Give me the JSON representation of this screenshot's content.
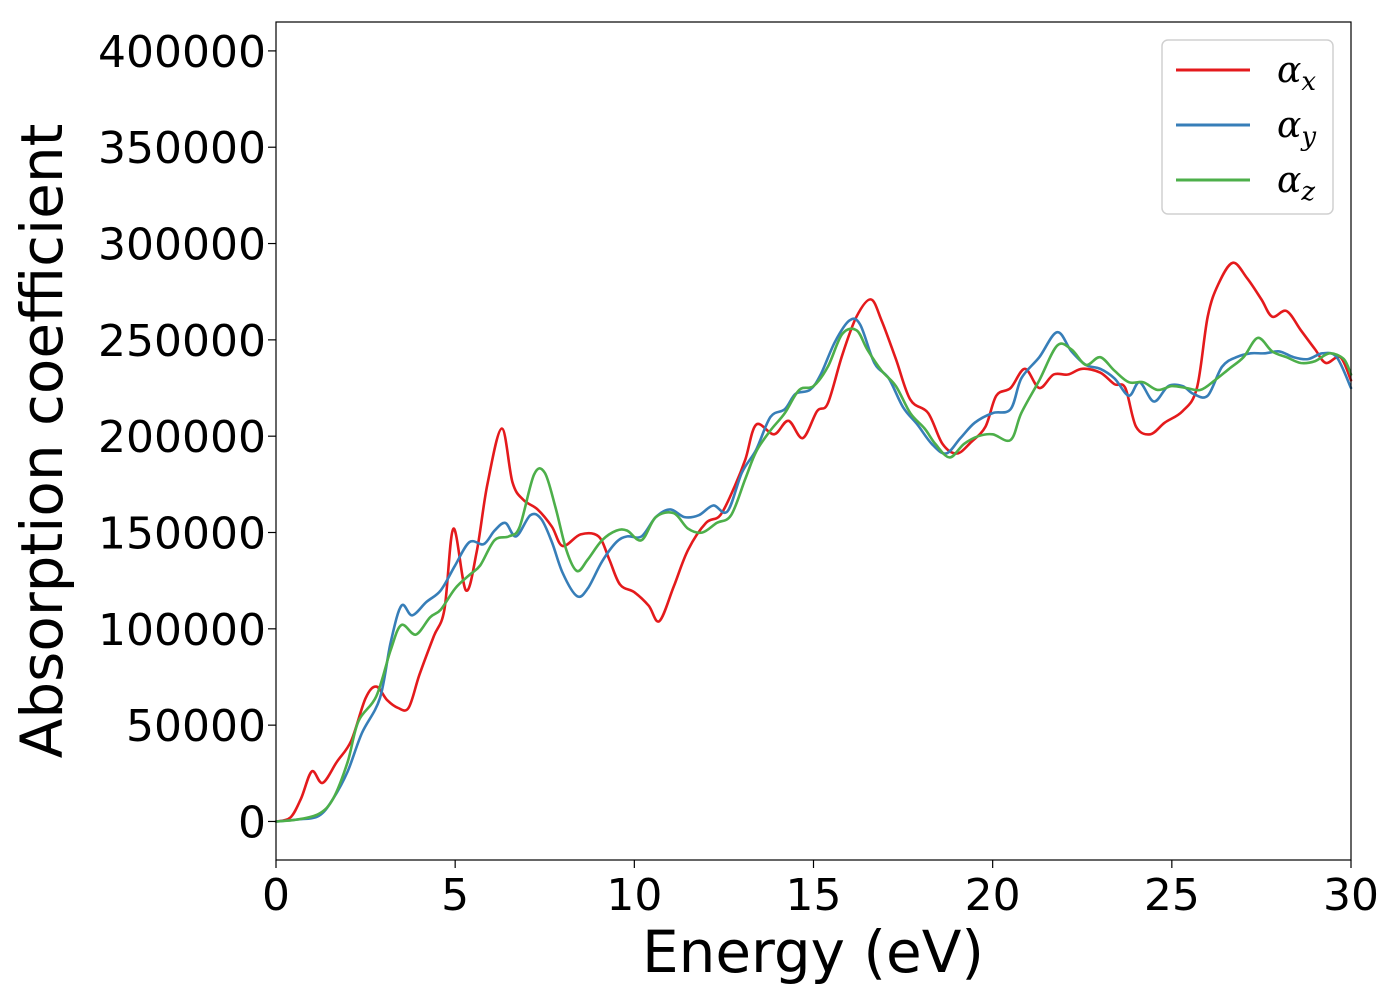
{
  "chart_data": {
    "type": "line",
    "xlabel": "Energy (eV)",
    "ylabel": "Absorption coefficient",
    "xlim": [
      0,
      30
    ],
    "ylim": [
      -20000,
      415000
    ],
    "xticks": [
      0,
      5,
      10,
      15,
      20,
      25,
      30
    ],
    "xtick_labels": [
      "0",
      "5",
      "10",
      "15",
      "20",
      "25",
      "30"
    ],
    "yticks": [
      0,
      50000,
      100000,
      150000,
      200000,
      250000,
      300000,
      350000,
      400000
    ],
    "ytick_labels": [
      "0",
      "50000",
      "100000",
      "150000",
      "200000",
      "250000",
      "300000",
      "350000",
      "400000"
    ],
    "grid": false,
    "legend": "top-right",
    "series": [
      {
        "name": "α",
        "subscript": "x",
        "color": "#e41a1c",
        "points": [
          [
            0,
            0
          ],
          [
            0.4,
            2000
          ],
          [
            0.7,
            12000
          ],
          [
            1.0,
            26000
          ],
          [
            1.3,
            20000
          ],
          [
            1.7,
            31000
          ],
          [
            2.1,
            42000
          ],
          [
            2.5,
            64000
          ],
          [
            2.8,
            70000
          ],
          [
            3.1,
            63000
          ],
          [
            3.4,
            59000
          ],
          [
            3.7,
            59000
          ],
          [
            4.0,
            76000
          ],
          [
            4.4,
            96000
          ],
          [
            4.7,
            110000
          ],
          [
            4.95,
            152000
          ],
          [
            5.3,
            120000
          ],
          [
            5.6,
            140000
          ],
          [
            5.9,
            175000
          ],
          [
            6.3,
            204000
          ],
          [
            6.6,
            176000
          ],
          [
            6.9,
            167000
          ],
          [
            7.3,
            162000
          ],
          [
            7.7,
            153000
          ],
          [
            8.0,
            143000
          ],
          [
            8.5,
            149000
          ],
          [
            9.0,
            148000
          ],
          [
            9.3,
            136000
          ],
          [
            9.6,
            123000
          ],
          [
            10.0,
            119000
          ],
          [
            10.4,
            112000
          ],
          [
            10.7,
            104000
          ],
          [
            11.1,
            122000
          ],
          [
            11.5,
            141000
          ],
          [
            12.0,
            155000
          ],
          [
            12.4,
            159000
          ],
          [
            12.8,
            174000
          ],
          [
            13.1,
            188000
          ],
          [
            13.4,
            206000
          ],
          [
            13.9,
            201000
          ],
          [
            14.3,
            208000
          ],
          [
            14.7,
            199000
          ],
          [
            15.1,
            213000
          ],
          [
            15.4,
            217000
          ],
          [
            15.8,
            242000
          ],
          [
            16.2,
            262000
          ],
          [
            16.6,
            271000
          ],
          [
            16.9,
            260000
          ],
          [
            17.3,
            240000
          ],
          [
            17.7,
            219000
          ],
          [
            18.2,
            212000
          ],
          [
            18.6,
            196000
          ],
          [
            19.0,
            191000
          ],
          [
            19.4,
            197000
          ],
          [
            19.8,
            205000
          ],
          [
            20.1,
            221000
          ],
          [
            20.5,
            225000
          ],
          [
            20.9,
            235000
          ],
          [
            21.3,
            225000
          ],
          [
            21.7,
            232000
          ],
          [
            22.1,
            232000
          ],
          [
            22.5,
            235000
          ],
          [
            23.0,
            233000
          ],
          [
            23.4,
            227000
          ],
          [
            23.7,
            225000
          ],
          [
            24.0,
            205000
          ],
          [
            24.4,
            201000
          ],
          [
            24.8,
            207000
          ],
          [
            25.3,
            213000
          ],
          [
            25.7,
            225000
          ],
          [
            26.0,
            262000
          ],
          [
            26.3,
            279000
          ],
          [
            26.7,
            290000
          ],
          [
            27.1,
            282000
          ],
          [
            27.5,
            271000
          ],
          [
            27.8,
            262000
          ],
          [
            28.2,
            265000
          ],
          [
            28.6,
            255000
          ],
          [
            29.0,
            245000
          ],
          [
            29.3,
            238000
          ],
          [
            29.7,
            241000
          ],
          [
            30.0,
            229000
          ]
        ]
      },
      {
        "name": "α",
        "subscript": "y",
        "color": "#377eb8",
        "points": [
          [
            0,
            0
          ],
          [
            0.6,
            1000
          ],
          [
            1.2,
            3000
          ],
          [
            1.6,
            12000
          ],
          [
            2.0,
            26000
          ],
          [
            2.4,
            46000
          ],
          [
            2.9,
            64000
          ],
          [
            3.2,
            93000
          ],
          [
            3.5,
            112000
          ],
          [
            3.8,
            107000
          ],
          [
            4.2,
            114000
          ],
          [
            4.6,
            120000
          ],
          [
            5.0,
            133000
          ],
          [
            5.4,
            145000
          ],
          [
            5.8,
            144000
          ],
          [
            6.1,
            151000
          ],
          [
            6.4,
            155000
          ],
          [
            6.7,
            148000
          ],
          [
            7.1,
            159000
          ],
          [
            7.4,
            157000
          ],
          [
            7.7,
            145000
          ],
          [
            8.0,
            129000
          ],
          [
            8.4,
            117000
          ],
          [
            8.7,
            121000
          ],
          [
            9.1,
            135000
          ],
          [
            9.5,
            145000
          ],
          [
            9.8,
            148000
          ],
          [
            10.2,
            148000
          ],
          [
            10.6,
            158000
          ],
          [
            11.0,
            162000
          ],
          [
            11.4,
            158000
          ],
          [
            11.8,
            159000
          ],
          [
            12.2,
            164000
          ],
          [
            12.6,
            161000
          ],
          [
            13.0,
            181000
          ],
          [
            13.4,
            193000
          ],
          [
            13.8,
            210000
          ],
          [
            14.2,
            214000
          ],
          [
            14.5,
            222000
          ],
          [
            14.9,
            224000
          ],
          [
            15.2,
            232000
          ],
          [
            15.6,
            249000
          ],
          [
            16.0,
            260000
          ],
          [
            16.3,
            258000
          ],
          [
            16.7,
            238000
          ],
          [
            17.1,
            230000
          ],
          [
            17.5,
            215000
          ],
          [
            17.9,
            206000
          ],
          [
            18.3,
            196000
          ],
          [
            18.7,
            191000
          ],
          [
            19.1,
            199000
          ],
          [
            19.5,
            207000
          ],
          [
            20.0,
            212000
          ],
          [
            20.5,
            214000
          ],
          [
            20.8,
            230000
          ],
          [
            21.3,
            241000
          ],
          [
            21.8,
            254000
          ],
          [
            22.2,
            244000
          ],
          [
            22.6,
            237000
          ],
          [
            23.0,
            235000
          ],
          [
            23.4,
            230000
          ],
          [
            23.8,
            221000
          ],
          [
            24.1,
            228000
          ],
          [
            24.5,
            218000
          ],
          [
            24.9,
            226000
          ],
          [
            25.3,
            226000
          ],
          [
            25.6,
            222000
          ],
          [
            26.0,
            221000
          ],
          [
            26.4,
            236000
          ],
          [
            26.8,
            241000
          ],
          [
            27.2,
            243000
          ],
          [
            27.6,
            243000
          ],
          [
            28.0,
            244000
          ],
          [
            28.4,
            241000
          ],
          [
            28.8,
            240000
          ],
          [
            29.2,
            243000
          ],
          [
            29.6,
            241000
          ],
          [
            30.0,
            225000
          ]
        ]
      },
      {
        "name": "α",
        "subscript": "z",
        "color": "#4daf4a",
        "points": [
          [
            0,
            0
          ],
          [
            0.6,
            1000
          ],
          [
            1.2,
            4000
          ],
          [
            1.6,
            12000
          ],
          [
            2.0,
            31000
          ],
          [
            2.3,
            52000
          ],
          [
            2.8,
            65000
          ],
          [
            3.2,
            89000
          ],
          [
            3.5,
            102000
          ],
          [
            3.9,
            97000
          ],
          [
            4.3,
            106000
          ],
          [
            4.6,
            110000
          ],
          [
            5.0,
            121000
          ],
          [
            5.4,
            128000
          ],
          [
            5.7,
            133000
          ],
          [
            6.1,
            146000
          ],
          [
            6.5,
            148000
          ],
          [
            6.8,
            153000
          ],
          [
            7.2,
            180000
          ],
          [
            7.5,
            181000
          ],
          [
            7.8,
            163000
          ],
          [
            8.1,
            141000
          ],
          [
            8.4,
            130000
          ],
          [
            8.7,
            136000
          ],
          [
            9.1,
            146000
          ],
          [
            9.5,
            151000
          ],
          [
            9.8,
            151000
          ],
          [
            10.2,
            146000
          ],
          [
            10.6,
            158000
          ],
          [
            11.1,
            160000
          ],
          [
            11.5,
            152000
          ],
          [
            11.9,
            150000
          ],
          [
            12.3,
            155000
          ],
          [
            12.7,
            159000
          ],
          [
            13.1,
            178000
          ],
          [
            13.4,
            192000
          ],
          [
            13.8,
            203000
          ],
          [
            14.2,
            212000
          ],
          [
            14.6,
            224000
          ],
          [
            15.0,
            226000
          ],
          [
            15.4,
            236000
          ],
          [
            15.8,
            253000
          ],
          [
            16.2,
            255000
          ],
          [
            16.5,
            245000
          ],
          [
            16.9,
            234000
          ],
          [
            17.3,
            226000
          ],
          [
            17.7,
            212000
          ],
          [
            18.1,
            204000
          ],
          [
            18.4,
            196000
          ],
          [
            18.8,
            189000
          ],
          [
            19.2,
            196000
          ],
          [
            19.6,
            200000
          ],
          [
            20.0,
            201000
          ],
          [
            20.5,
            198000
          ],
          [
            20.8,
            212000
          ],
          [
            21.3,
            229000
          ],
          [
            21.8,
            247000
          ],
          [
            22.2,
            245000
          ],
          [
            22.6,
            237000
          ],
          [
            23.0,
            241000
          ],
          [
            23.4,
            234000
          ],
          [
            23.8,
            228000
          ],
          [
            24.2,
            228000
          ],
          [
            24.6,
            224000
          ],
          [
            25.0,
            226000
          ],
          [
            25.4,
            225000
          ],
          [
            25.8,
            224000
          ],
          [
            26.2,
            229000
          ],
          [
            26.6,
            235000
          ],
          [
            27.0,
            241000
          ],
          [
            27.4,
            251000
          ],
          [
            27.8,
            244000
          ],
          [
            28.2,
            241000
          ],
          [
            28.6,
            238000
          ],
          [
            29.0,
            239000
          ],
          [
            29.4,
            243000
          ],
          [
            29.8,
            240000
          ],
          [
            30.0,
            232000
          ]
        ]
      }
    ]
  }
}
